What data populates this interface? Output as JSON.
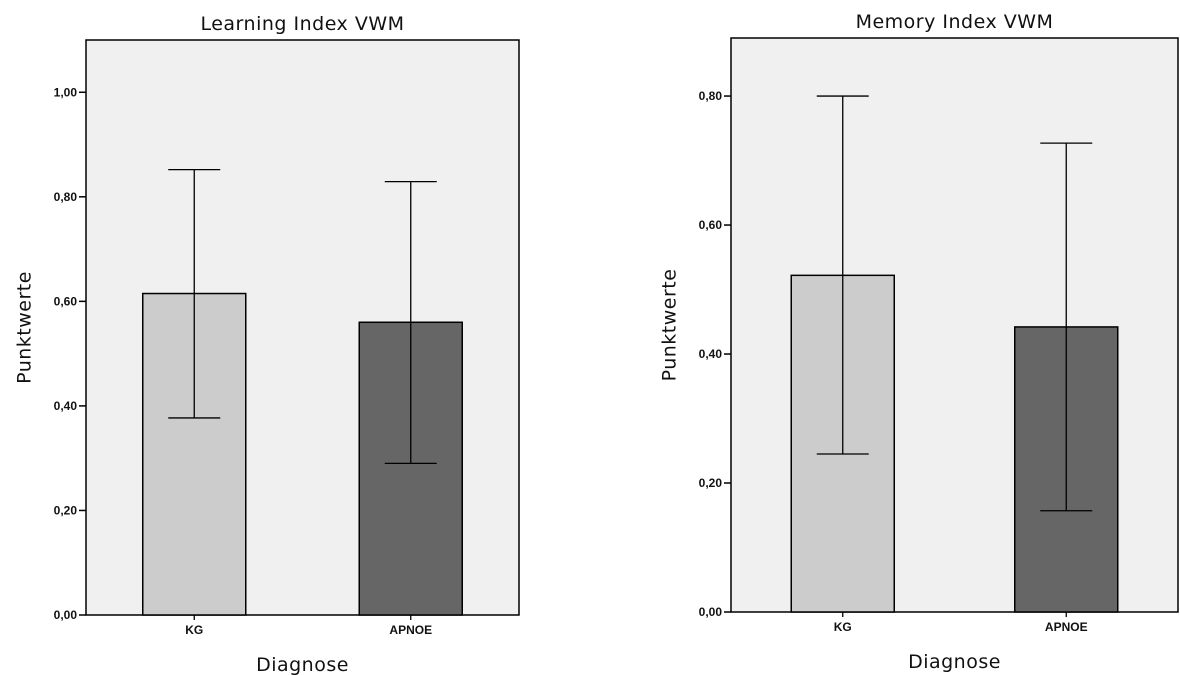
{
  "chart_data": [
    {
      "type": "bar",
      "title": "Learning Index VWM",
      "xlabel": "Diagnose",
      "ylabel": "Punktwerte",
      "ylim": [
        0,
        1.1
      ],
      "yticks": [
        "0,00",
        "0,20",
        "0,40",
        "0,60",
        "0,80",
        "1,00"
      ],
      "ytick_values": [
        0,
        0.2,
        0.4,
        0.6,
        0.8,
        1.0
      ],
      "categories": [
        "KG",
        "APNOE"
      ],
      "values": [
        0.615,
        0.56
      ],
      "error_low": [
        0.377,
        0.29
      ],
      "error_high": [
        0.852,
        0.829
      ],
      "bar_colors": [
        "#cccccc",
        "#666666"
      ],
      "plot_background": "#f0f0f0",
      "grid": false
    },
    {
      "type": "bar",
      "title": "Memory Index VWM",
      "xlabel": "Diagnose",
      "ylabel": "Punktwerte",
      "ylim": [
        0,
        0.89
      ],
      "yticks": [
        "0,00",
        "0,20",
        "0,40",
        "0,60",
        "0,80"
      ],
      "ytick_values": [
        0,
        0.2,
        0.4,
        0.6,
        0.8
      ],
      "categories": [
        "KG",
        "APNOE"
      ],
      "values": [
        0.522,
        0.442
      ],
      "error_low": [
        0.245,
        0.157
      ],
      "error_high": [
        0.8,
        0.727
      ],
      "bar_colors": [
        "#cccccc",
        "#666666"
      ],
      "plot_background": "#f0f0f0",
      "grid": false
    }
  ]
}
